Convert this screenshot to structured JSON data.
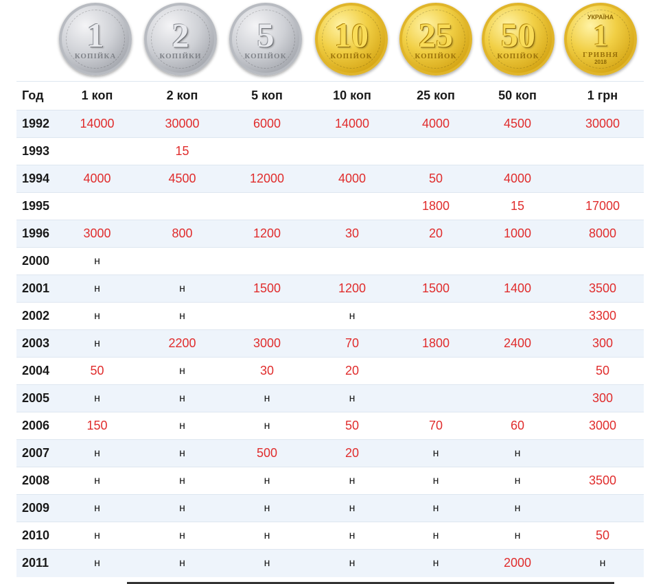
{
  "coins": [
    {
      "num": "1",
      "word": "КОПІЙКА",
      "metal": "silver"
    },
    {
      "num": "2",
      "word": "КОПІЙКИ",
      "metal": "silver"
    },
    {
      "num": "5",
      "word": "КОПІЙОК",
      "metal": "silver"
    },
    {
      "num": "10",
      "word": "КОПІЙОК",
      "metal": "gold"
    },
    {
      "num": "25",
      "word": "КОПІЙОК",
      "metal": "gold"
    },
    {
      "num": "50",
      "word": "КОПІЙОК",
      "metal": "gold"
    },
    {
      "num": "1",
      "word": "ГРИВНЯ",
      "metal": "gold",
      "top": "УКРАЇНА",
      "year": "2018"
    }
  ],
  "table": {
    "headers": [
      "Год",
      "1 коп",
      "2 коп",
      "5 коп",
      "10 коп",
      "25 коп",
      "50 коп",
      "1 грн"
    ],
    "rows": [
      {
        "year": "1992",
        "cells": [
          "14000",
          "30000",
          "6000",
          "14000",
          "4000",
          "4500",
          "30000"
        ]
      },
      {
        "year": "1993",
        "cells": [
          "",
          "15",
          "",
          "",
          "",
          "",
          ""
        ]
      },
      {
        "year": "1994",
        "cells": [
          "4000",
          "4500",
          "12000",
          "4000",
          "50",
          "4000",
          ""
        ]
      },
      {
        "year": "1995",
        "cells": [
          "",
          "",
          "",
          "",
          "1800",
          "15",
          "17000"
        ]
      },
      {
        "year": "1996",
        "cells": [
          "3000",
          "800",
          "1200",
          "30",
          "20",
          "1000",
          "8000"
        ]
      },
      {
        "year": "2000",
        "cells": [
          "н",
          "",
          "",
          "",
          "",
          "",
          ""
        ]
      },
      {
        "year": "2001",
        "cells": [
          "н",
          "н",
          "1500",
          "1200",
          "1500",
          "1400",
          "3500"
        ]
      },
      {
        "year": "2002",
        "cells": [
          "н",
          "н",
          "",
          "н",
          "",
          "",
          "3300"
        ]
      },
      {
        "year": "2003",
        "cells": [
          "н",
          "2200",
          "3000",
          "70",
          "1800",
          "2400",
          "300"
        ]
      },
      {
        "year": "2004",
        "cells": [
          "50",
          "н",
          "30",
          "20",
          "",
          "",
          "50"
        ]
      },
      {
        "year": "2005",
        "cells": [
          "н",
          "н",
          "н",
          "н",
          "",
          "",
          "300"
        ]
      },
      {
        "year": "2006",
        "cells": [
          "150",
          "н",
          "н",
          "50",
          "70",
          "60",
          "3000"
        ]
      },
      {
        "year": "2007",
        "cells": [
          "н",
          "н",
          "500",
          "20",
          "н",
          "н",
          ""
        ]
      },
      {
        "year": "2008",
        "cells": [
          "н",
          "н",
          "н",
          "н",
          "н",
          "н",
          "3500"
        ]
      },
      {
        "year": "2009",
        "cells": [
          "н",
          "н",
          "н",
          "н",
          "н",
          "н",
          ""
        ]
      },
      {
        "year": "2010",
        "cells": [
          "н",
          "н",
          "н",
          "н",
          "н",
          "н",
          "50"
        ]
      },
      {
        "year": "2011",
        "cells": [
          "н",
          "н",
          "н",
          "н",
          "н",
          "2000",
          "н"
        ]
      }
    ]
  }
}
